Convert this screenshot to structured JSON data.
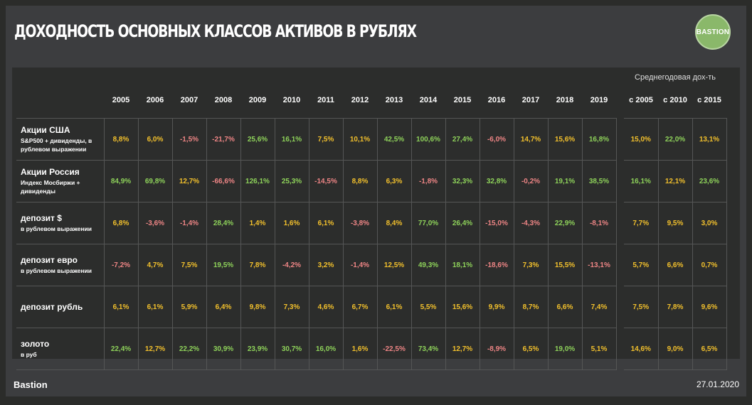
{
  "title": "ДОХОДНОСТЬ ОСНОВНЫХ КЛАССОВ АКТИВОВ В РУБЛЯХ",
  "logo_text": "BASTION",
  "avg_caption": "Среднегодовая дох-ть",
  "years": [
    "2005",
    "2006",
    "2007",
    "2008",
    "2009",
    "2010",
    "2011",
    "2012",
    "2013",
    "2014",
    "2015",
    "2016",
    "2017",
    "2018",
    "2019"
  ],
  "avg_headers": [
    "с 2005",
    "с 2010",
    "с 2015"
  ],
  "colors": {
    "positive": "#8ed25a",
    "neutral": "#f2c02c",
    "negative": "#ee8585"
  },
  "rows": [
    {
      "name": "Акции США",
      "sub": "S&P500 + дивиденды, в рублевом выражении",
      "values": [
        "8,8%",
        "6,0%",
        "-1,5%",
        "-21,7%",
        "25,6%",
        "16,1%",
        "7,5%",
        "10,1%",
        "42,5%",
        "100,6%",
        "27,4%",
        "-6,0%",
        "14,7%",
        "15,6%",
        "16,8%"
      ],
      "avgs": [
        "15,0%",
        "22,0%",
        "13,1%"
      ]
    },
    {
      "name": "Акции Россия",
      "sub": "Индекс Мосбиржи + дивиденды",
      "values": [
        "84,9%",
        "69,8%",
        "12,7%",
        "-66,6%",
        "126,1%",
        "25,3%",
        "-14,5%",
        "8,8%",
        "6,3%",
        "-1,8%",
        "32,3%",
        "32,8%",
        "-0,2%",
        "19,1%",
        "38,5%"
      ],
      "avgs": [
        "16,1%",
        "12,1%",
        "23,6%"
      ]
    },
    {
      "name": "депозит $",
      "sub": "в рублевом выражении",
      "values": [
        "6,8%",
        "-3,6%",
        "-1,4%",
        "28,4%",
        "1,4%",
        "1,6%",
        "6,1%",
        "-3,8%",
        "8,4%",
        "77,0%",
        "26,4%",
        "-15,0%",
        "-4,3%",
        "22,9%",
        "-8,1%"
      ],
      "avgs": [
        "7,7%",
        "9,5%",
        "3,0%"
      ]
    },
    {
      "name": "депозит евро",
      "sub": "в рублевом выражении",
      "values": [
        "-7,2%",
        "4,7%",
        "7,5%",
        "19,5%",
        "7,8%",
        "-4,2%",
        "3,2%",
        "-1,4%",
        "12,5%",
        "49,3%",
        "18,1%",
        "-18,6%",
        "7,3%",
        "15,5%",
        "-13,1%"
      ],
      "avgs": [
        "5,7%",
        "6,6%",
        "0,7%"
      ]
    },
    {
      "name": "депозит рубль",
      "sub": "",
      "values": [
        "6,1%",
        "6,1%",
        "5,9%",
        "6,4%",
        "9,8%",
        "7,3%",
        "4,6%",
        "6,7%",
        "6,1%",
        "5,5%",
        "15,6%",
        "9,9%",
        "8,7%",
        "6,6%",
        "7,4%"
      ],
      "avgs": [
        "7,5%",
        "7,8%",
        "9,6%"
      ]
    },
    {
      "name": "золото",
      "sub": "в руб",
      "values": [
        "22,4%",
        "12,7%",
        "22,2%",
        "30,9%",
        "23,9%",
        "30,7%",
        "16,0%",
        "1,6%",
        "-22,5%",
        "73,4%",
        "12,7%",
        "-8,9%",
        "6,5%",
        "19,0%",
        "5,1%"
      ],
      "avgs": [
        "14,6%",
        "9,0%",
        "6,5%"
      ]
    }
  ],
  "footer": {
    "brand": "Bastion",
    "date": "27.01.2020"
  }
}
